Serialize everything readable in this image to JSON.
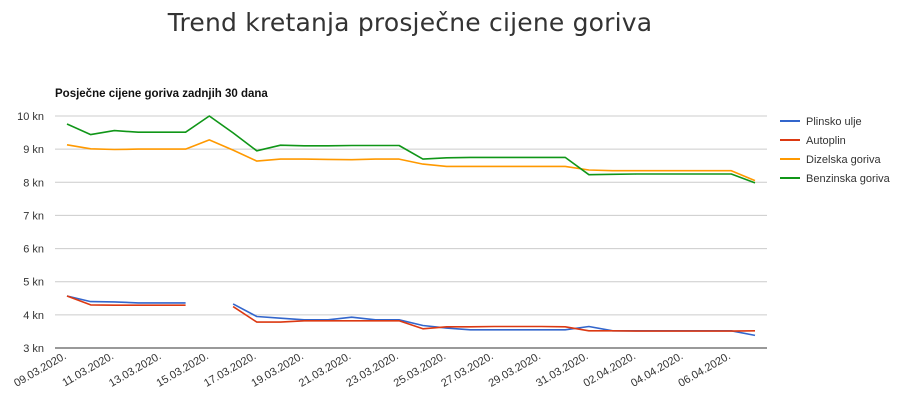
{
  "page": {
    "title": "Trend kretanja prosječne cijene goriva"
  },
  "chart_data": {
    "type": "line",
    "title": "Posječne cijene goriva zadnjih 30 dana",
    "xlabel": "",
    "ylabel": "",
    "ylim": [
      3,
      10
    ],
    "y_ticks": [
      "3 kn",
      "4 kn",
      "5 kn",
      "6 kn",
      "7 kn",
      "8 kn",
      "9 kn",
      "10 kn"
    ],
    "grid": true,
    "legend_position": "right",
    "x": [
      "09.03.2020.",
      "10.03.2020.",
      "11.03.2020.",
      "12.03.2020.",
      "13.03.2020.",
      "14.03.2020.",
      "15.03.2020.",
      "16.03.2020.",
      "17.03.2020.",
      "18.03.2020.",
      "19.03.2020.",
      "20.03.2020.",
      "21.03.2020.",
      "22.03.2020.",
      "23.03.2020.",
      "24.03.2020.",
      "25.03.2020.",
      "26.03.2020.",
      "27.03.2020.",
      "28.03.2020.",
      "29.03.2020.",
      "30.03.2020.",
      "31.03.2020.",
      "01.04.2020.",
      "02.04.2020.",
      "03.04.2020.",
      "04.04.2020.",
      "05.04.2020.",
      "06.04.2020.",
      "07.04.2020."
    ],
    "x_tick_labels": [
      "09.03.2020.",
      "11.03.2020.",
      "13.03.2020.",
      "15.03.2020.",
      "17.03.2020.",
      "19.03.2020.",
      "21.03.2020.",
      "23.03.2020.",
      "25.03.2020.",
      "27.03.2020.",
      "29.03.2020.",
      "31.03.2020.",
      "02.04.2020.",
      "04.04.2020.",
      "06.04.2020."
    ],
    "series": [
      {
        "name": "Plinsko ulje",
        "color": "#3366cc",
        "values": [
          4.57,
          4.4,
          4.39,
          4.36,
          4.36,
          4.36,
          null,
          4.33,
          3.95,
          3.9,
          3.85,
          3.85,
          3.93,
          3.85,
          3.85,
          3.68,
          3.6,
          3.55,
          3.55,
          3.55,
          3.55,
          3.55,
          3.65,
          3.52,
          3.52,
          3.52,
          3.52,
          3.52,
          3.52,
          3.38
        ]
      },
      {
        "name": "Autoplin",
        "color": "#dc3912",
        "values": [
          4.57,
          4.3,
          4.29,
          4.29,
          4.29,
          4.29,
          null,
          4.25,
          3.78,
          3.78,
          3.82,
          3.82,
          3.82,
          3.82,
          3.82,
          3.58,
          3.64,
          3.64,
          3.65,
          3.65,
          3.65,
          3.64,
          3.52,
          3.52,
          3.51,
          3.51,
          3.51,
          3.51,
          3.51,
          3.52
        ]
      },
      {
        "name": "Dizelska goriva",
        "color": "#ff9900",
        "values": [
          9.13,
          9.01,
          8.99,
          9.0,
          9.0,
          9.0,
          9.28,
          8.97,
          8.64,
          8.7,
          8.7,
          8.69,
          8.68,
          8.7,
          8.7,
          8.55,
          8.48,
          8.48,
          8.48,
          8.48,
          8.48,
          8.48,
          8.37,
          8.35,
          8.35,
          8.35,
          8.35,
          8.35,
          8.35,
          8.05
        ]
      },
      {
        "name": "Benzinska goriva",
        "color": "#109618",
        "values": [
          9.76,
          9.44,
          9.56,
          9.51,
          9.51,
          9.51,
          10.0,
          9.49,
          8.95,
          9.12,
          9.1,
          9.1,
          9.11,
          9.11,
          9.11,
          8.7,
          8.74,
          8.75,
          8.75,
          8.75,
          8.75,
          8.75,
          8.23,
          8.24,
          8.25,
          8.25,
          8.25,
          8.25,
          8.25,
          7.98
        ]
      }
    ]
  }
}
